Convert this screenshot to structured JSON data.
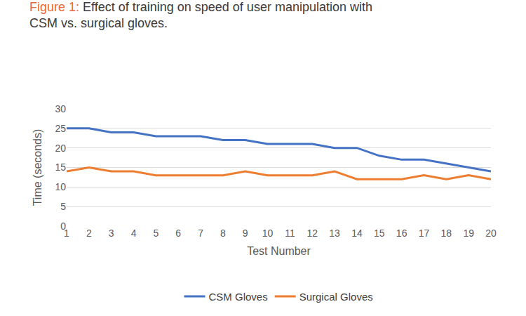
{
  "chart_data": {
    "type": "line",
    "title": "Figure 1: Effect of training on speed of user manipulation with CSM vs. surgical gloves.",
    "x_label": "Test Number",
    "y_label": "Time (seconds)",
    "categories": [
      "1",
      "2",
      "3",
      "4",
      "5",
      "6",
      "7",
      "8",
      "9",
      "10",
      "11",
      "12",
      "13",
      "14",
      "15",
      "16",
      "17",
      "18",
      "19",
      "20"
    ],
    "series": [
      {
        "name": "CSM Gloves",
        "color": "#4472c4",
        "values": [
          25,
          25,
          24,
          24,
          23,
          23,
          23,
          22,
          22,
          21,
          21,
          21,
          20,
          20,
          18,
          17,
          17,
          16,
          15,
          14
        ]
      },
      {
        "name": "Surgical Gloves",
        "color": "#ed7d31",
        "values": [
          14,
          15,
          14,
          14,
          13,
          13,
          13,
          13,
          14,
          13,
          13,
          13,
          14,
          12,
          12,
          12,
          13,
          12,
          13,
          12
        ]
      }
    ],
    "ylim": [
      0,
      30
    ],
    "yticks": [
      0,
      5,
      10,
      15,
      20,
      25,
      30
    ],
    "grid": true,
    "legend": "bottom"
  }
}
